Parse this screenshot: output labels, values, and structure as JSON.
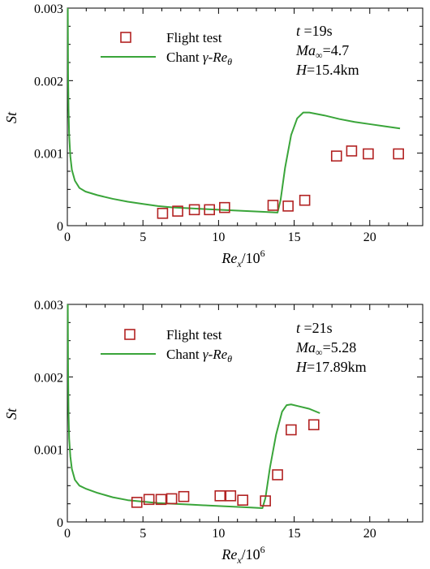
{
  "chart_data": [
    {
      "type": "line",
      "xlabel": "Re",
      "xlabel_sub": "x",
      "xlabel_suffix": "/10",
      "xlabel_sup": "6",
      "ylabel": "St",
      "xlim": [
        0,
        23.5
      ],
      "ylim": [
        0,
        0.003
      ],
      "x_ticks": [
        0,
        5,
        10,
        15,
        20
      ],
      "y_ticks": [
        0,
        0.001,
        0.002,
        0.003
      ],
      "y_tick_labels": [
        "0",
        "0.001",
        "0.002",
        "0.003"
      ],
      "legend_placement": "top-left",
      "annotations": {
        "t": {
          "main": "t",
          "rest": " =19s"
        },
        "ma": {
          "main": "Ma",
          "sub": "∞",
          "rest": "=4.7"
        },
        "h": {
          "main": "H",
          "rest": "=15.4km"
        }
      },
      "series": [
        {
          "name": "Flight test",
          "type": "scatter",
          "marker": "square",
          "color": "#b22222",
          "x": [
            6.3,
            7.3,
            8.4,
            9.4,
            10.4,
            13.6,
            14.6,
            15.7,
            17.8,
            18.8,
            19.9,
            21.9
          ],
          "y": [
            0.00017,
            0.0002,
            0.00022,
            0.00022,
            0.00025,
            0.00028,
            0.00027,
            0.00035,
            0.00096,
            0.00103,
            0.00099,
            0.00099
          ]
        },
        {
          "name": "Chant γ-Reθ",
          "name_parts": {
            "lead": "Chant ",
            "gamma": "γ",
            "dash": "-",
            "re": "Re",
            "sub": "θ"
          },
          "type": "line",
          "color": "#3aa53a",
          "x": [
            0.03,
            0.05,
            0.08,
            0.12,
            0.2,
            0.3,
            0.5,
            0.8,
            1.2,
            2,
            3,
            4,
            5,
            6,
            7,
            8,
            9,
            10,
            11,
            12,
            13,
            13.9,
            14.1,
            14.4,
            14.8,
            15.2,
            15.6,
            16,
            17,
            18,
            19,
            20,
            21,
            22
          ],
          "y": [
            0.003,
            0.0021,
            0.0016,
            0.00125,
            0.00095,
            0.00077,
            0.00062,
            0.00052,
            0.00047,
            0.00042,
            0.00037,
            0.00033,
            0.0003,
            0.00027,
            0.00025,
            0.00024,
            0.00023,
            0.00022,
            0.00021,
            0.0002,
            0.00019,
            0.00018,
            0.00035,
            0.0008,
            0.00125,
            0.00148,
            0.00156,
            0.00156,
            0.00152,
            0.00147,
            0.00143,
            0.0014,
            0.00137,
            0.00134
          ]
        }
      ]
    },
    {
      "type": "line",
      "xlabel": "Re",
      "xlabel_sub": "x",
      "xlabel_suffix": "/10",
      "xlabel_sup": "6",
      "ylabel": "St",
      "xlim": [
        0,
        23.5
      ],
      "ylim": [
        0,
        0.003
      ],
      "x_ticks": [
        0,
        5,
        10,
        15,
        20
      ],
      "y_ticks": [
        0,
        0.001,
        0.002,
        0.003
      ],
      "y_tick_labels": [
        "0",
        "0.001",
        "0.002",
        "0.003"
      ],
      "legend_placement": "top-left",
      "annotations": {
        "t": {
          "main": "t",
          "rest": " =21s"
        },
        "ma": {
          "main": "Ma",
          "sub": "∞",
          "rest": "=5.28"
        },
        "h": {
          "main": "H",
          "rest": "=17.89km"
        }
      },
      "series": [
        {
          "name": "Flight test",
          "type": "scatter",
          "marker": "square",
          "color": "#b22222",
          "x": [
            4.6,
            5.4,
            6.2,
            6.9,
            7.7,
            10.1,
            10.8,
            11.6,
            13.1,
            13.9,
            14.8,
            16.3
          ],
          "y": [
            0.00027,
            0.00031,
            0.00031,
            0.00032,
            0.00035,
            0.00036,
            0.00036,
            0.0003,
            0.00029,
            0.00065,
            0.00127,
            0.00134
          ]
        },
        {
          "name": "Chant γ-Reθ",
          "name_parts": {
            "lead": "Chant ",
            "gamma": "γ",
            "dash": "-",
            "re": "Re",
            "sub": "θ"
          },
          "type": "line",
          "color": "#3aa53a",
          "x": [
            0.03,
            0.05,
            0.08,
            0.12,
            0.2,
            0.3,
            0.5,
            0.8,
            1.2,
            2,
            3,
            4,
            5,
            6,
            7,
            8,
            9,
            10,
            11,
            12,
            12.9,
            13.1,
            13.4,
            13.8,
            14.2,
            14.5,
            14.8,
            15.2,
            16,
            16.7
          ],
          "y": [
            0.003,
            0.0021,
            0.0015,
            0.00115,
            0.0009,
            0.00073,
            0.00058,
            0.0005,
            0.00046,
            0.0004,
            0.00034,
            0.0003,
            0.00028,
            0.00026,
            0.00025,
            0.00024,
            0.00023,
            0.00022,
            0.00021,
            0.0002,
            0.00019,
            0.00033,
            0.00075,
            0.0012,
            0.00152,
            0.00161,
            0.00162,
            0.0016,
            0.00156,
            0.0015
          ]
        }
      ]
    }
  ]
}
